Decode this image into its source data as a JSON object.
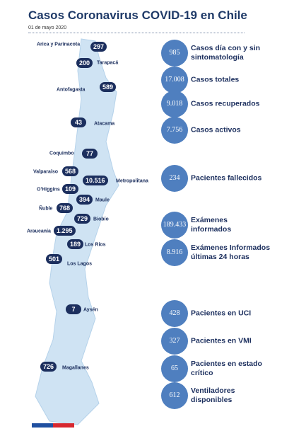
{
  "header": {
    "title": "Casos Coronavirus COVID-19 en Chile",
    "date": "01 de mayo 2020"
  },
  "regions": [
    {
      "name": "Arica y Parinacota",
      "cases": "297"
    },
    {
      "name": "Tarapacá",
      "cases": "200"
    },
    {
      "name": "Antofagasta",
      "cases": "589"
    },
    {
      "name": "Atacama",
      "cases": "43"
    },
    {
      "name": "Coquimbo",
      "cases": "77"
    },
    {
      "name": "Valparaíso",
      "cases": "568"
    },
    {
      "name": "Metropolitana",
      "cases": "10.516"
    },
    {
      "name": "O'Higgins",
      "cases": "109"
    },
    {
      "name": "Maule",
      "cases": "394"
    },
    {
      "name": "Ñuble",
      "cases": "768"
    },
    {
      "name": "Biobío",
      "cases": "729"
    },
    {
      "name": "Araucanía",
      "cases": "1.295"
    },
    {
      "name": "Los Ríos",
      "cases": "189"
    },
    {
      "name": "Los Lagos",
      "cases": "501"
    },
    {
      "name": "Aysén",
      "cases": "7"
    },
    {
      "name": "Magallanes",
      "cases": "726"
    }
  ],
  "stats": [
    {
      "value": "985",
      "label": "Casos día con y sin sintomatología"
    },
    {
      "value": "17.008",
      "label": "Casos totales"
    },
    {
      "value": "9.018",
      "label": "Casos recuperados"
    },
    {
      "value": "7.756",
      "label": "Casos activos"
    },
    {
      "value": "234",
      "label": "Pacientes fallecidos"
    },
    {
      "value": "189.433",
      "label": "Exámenes informados"
    },
    {
      "value": "8.916",
      "label": "Exámenes Informados últimas 24 horas"
    },
    {
      "value": "428",
      "label": "Pacientes en UCI"
    },
    {
      "value": "327",
      "label": "Pacientes en VMI"
    },
    {
      "value": "65",
      "label": "Pacientes en estado crítico"
    },
    {
      "value": "612",
      "label": "Ventiladores disponibles"
    }
  ]
}
